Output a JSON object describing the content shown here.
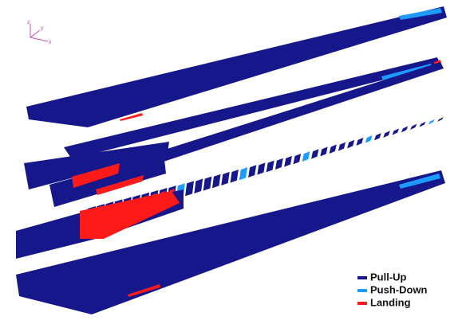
{
  "axes": {
    "z": "z",
    "y": "y",
    "x": "x"
  },
  "legend": [
    {
      "label": "Pull-Up",
      "color": "#17178c"
    },
    {
      "label": "Push-Down",
      "color": "#1e9bff"
    },
    {
      "label": "Landing",
      "color": "#ff1a1a"
    }
  ]
}
